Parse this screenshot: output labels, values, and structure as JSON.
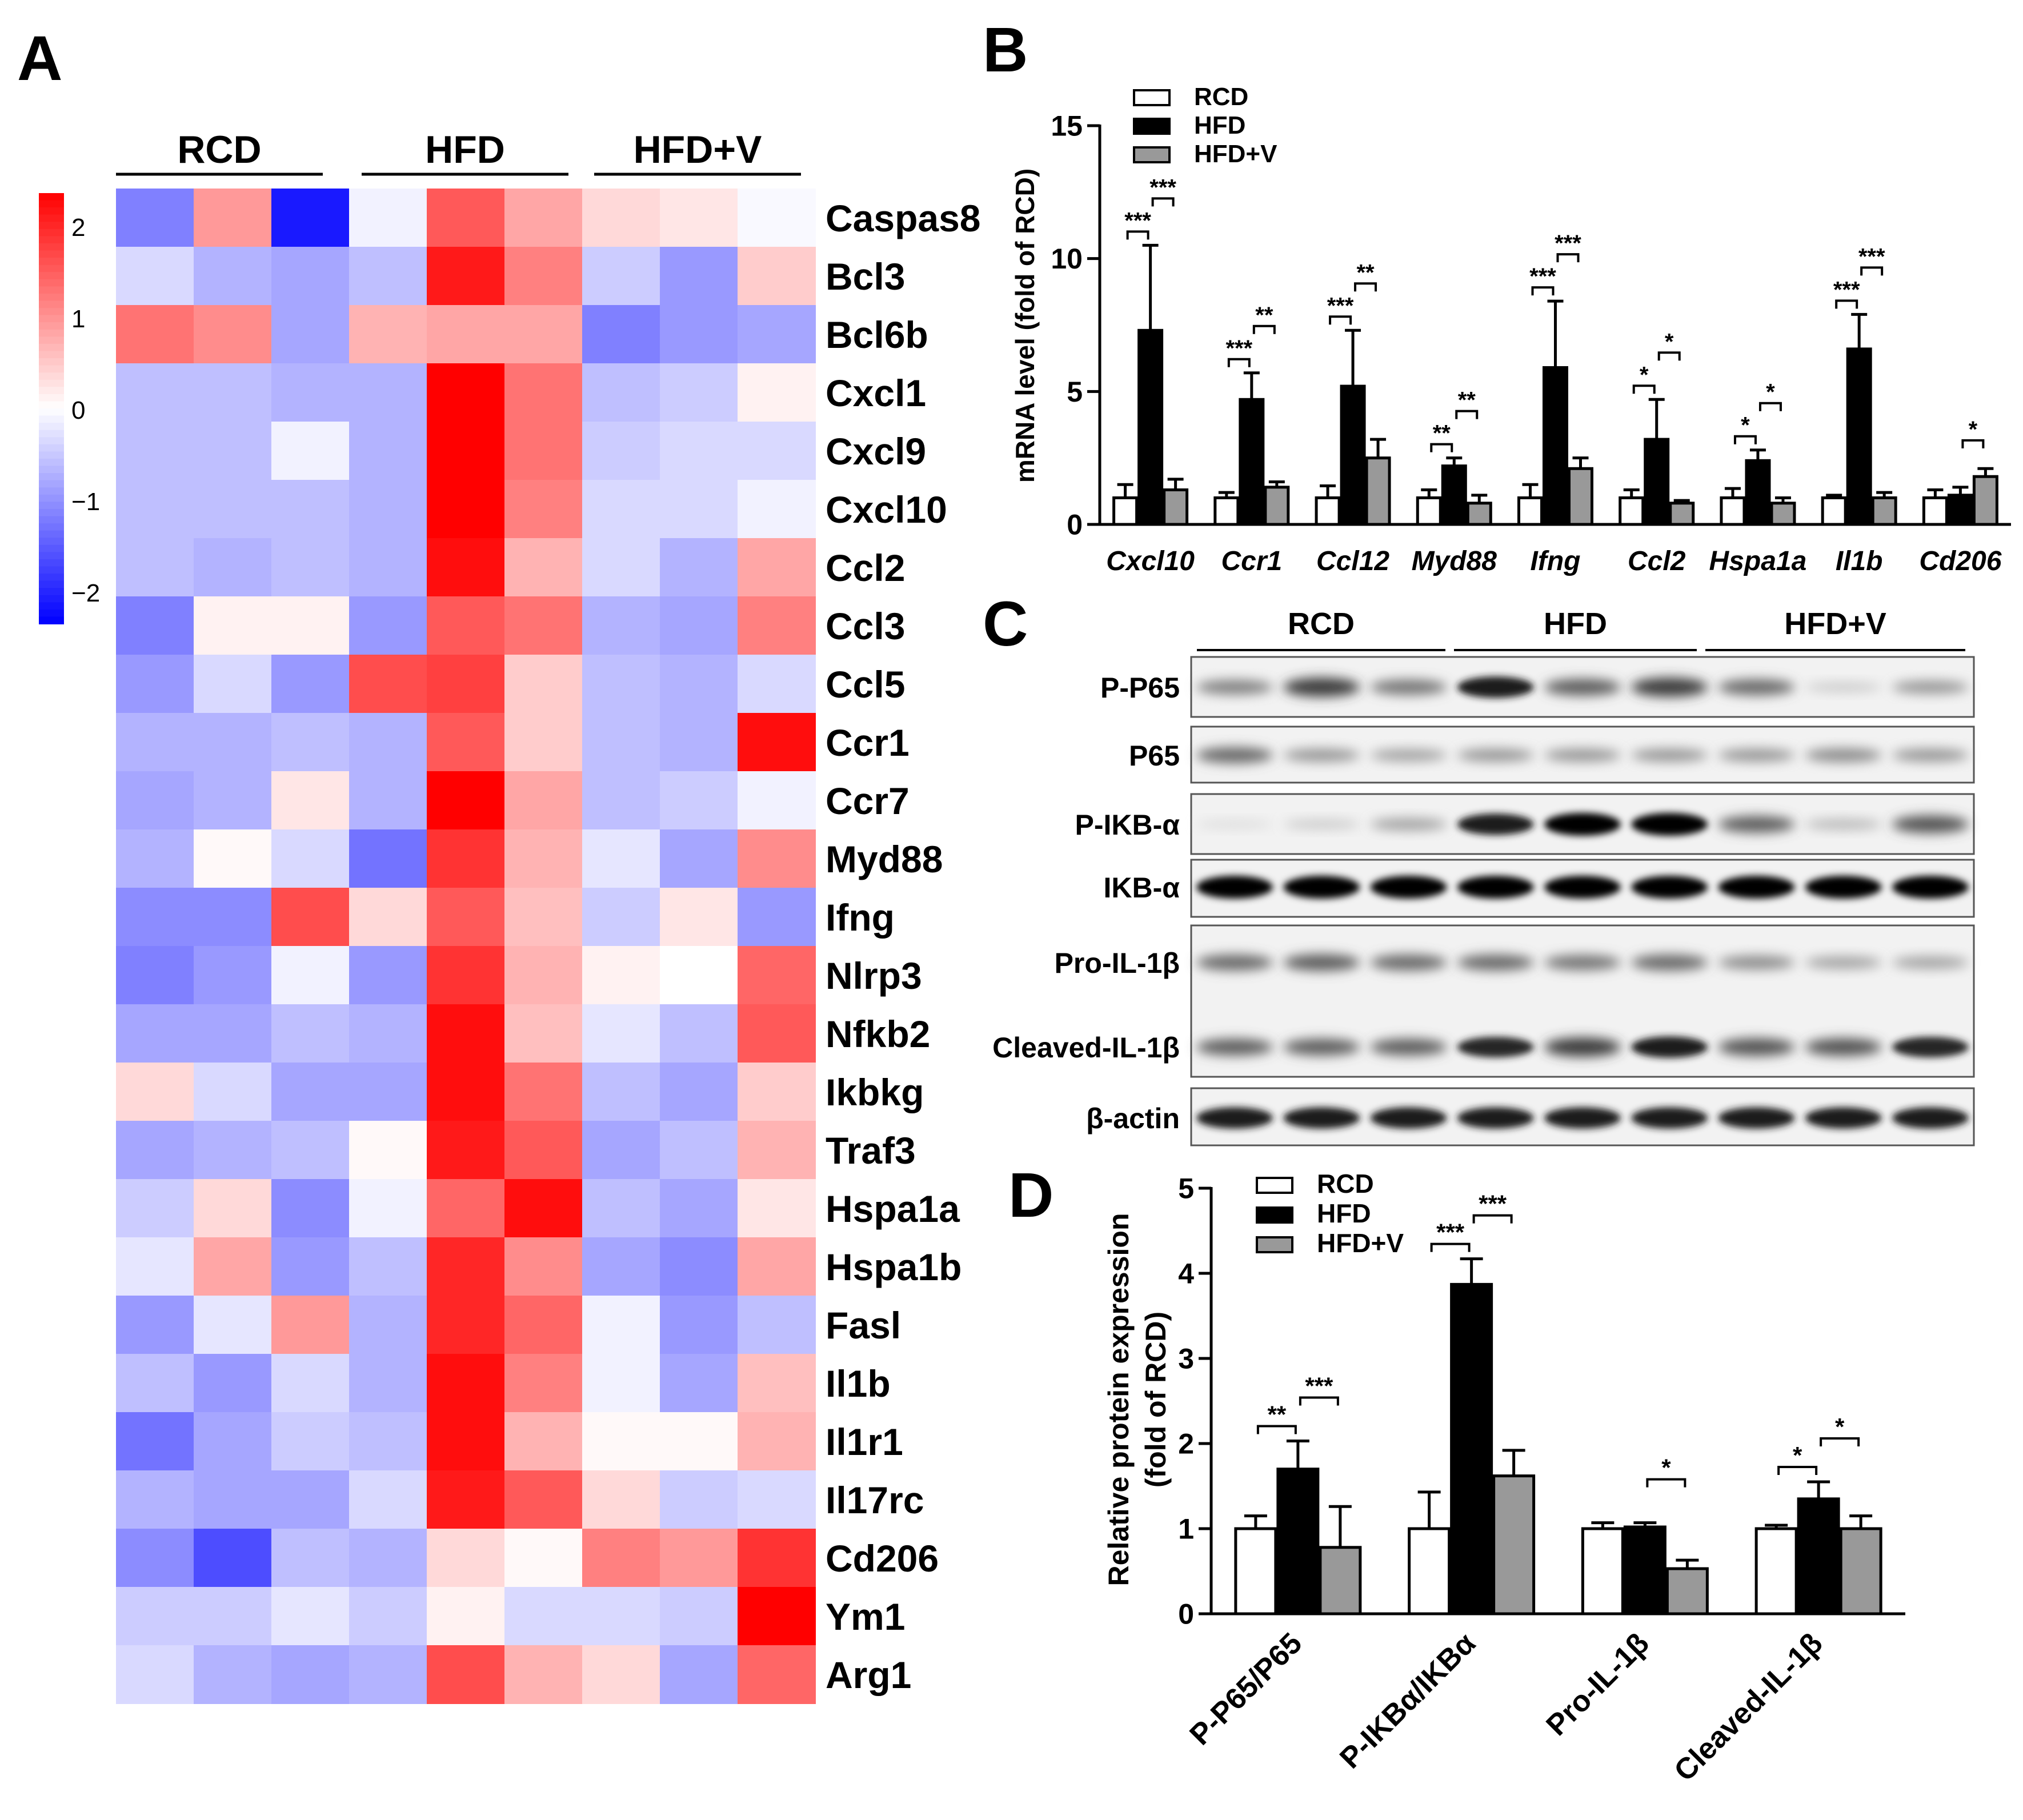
{
  "panels": {
    "A": "A",
    "B": "B",
    "C": "C",
    "D": "D"
  },
  "colors": {
    "rcd": "#ffffff",
    "hfd": "#000000",
    "hfdv": "#999999"
  },
  "chart_data": [
    {
      "panel": "A",
      "type": "heatmap",
      "groups": [
        "RCD",
        "HFD",
        "HFD+V"
      ],
      "genes": [
        "Caspas8",
        "Bcl3",
        "Bcl6b",
        "Cxcl1",
        "Cxcl9",
        "Cxcl10",
        "Ccl2",
        "Ccl3",
        "Ccl5",
        "Ccr1",
        "Ccr7",
        "Myd88",
        "Ifng",
        "Nlrp3",
        "Nfkb2",
        "Ikbkg",
        "Traf3",
        "Hspa1a",
        "Hspa1b",
        "Fasl",
        "Il1b",
        "Il1r1",
        "Il17rc",
        "Cd206",
        "Ym1",
        "Arg1"
      ],
      "values": [
        [
          -1.0,
          0.8,
          -1.8,
          -0.1,
          1.3,
          0.7,
          0.3,
          0.2,
          -0.05
        ],
        [
          -0.3,
          -0.6,
          -0.7,
          -0.5,
          1.8,
          1.0,
          -0.4,
          -0.8,
          0.4
        ],
        [
          1.1,
          0.9,
          -0.7,
          0.6,
          0.7,
          0.7,
          -1.0,
          -0.8,
          -0.7
        ],
        [
          -0.5,
          -0.5,
          -0.6,
          -0.6,
          2.0,
          1.1,
          -0.5,
          -0.4,
          0.1
        ],
        [
          -0.5,
          -0.5,
          -0.1,
          -0.6,
          2.0,
          1.1,
          -0.4,
          -0.3,
          -0.3
        ],
        [
          -0.5,
          -0.5,
          -0.5,
          -0.6,
          2.0,
          1.0,
          -0.3,
          -0.3,
          -0.1
        ],
        [
          -0.5,
          -0.6,
          -0.5,
          -0.6,
          1.9,
          0.6,
          -0.3,
          -0.6,
          0.7
        ],
        [
          -1.0,
          0.1,
          0.1,
          -0.8,
          1.3,
          1.1,
          -0.6,
          -0.7,
          1.0
        ],
        [
          -0.8,
          -0.3,
          -0.8,
          1.4,
          1.5,
          0.4,
          -0.5,
          -0.6,
          -0.3
        ],
        [
          -0.6,
          -0.6,
          -0.5,
          -0.6,
          1.3,
          0.4,
          -0.5,
          -0.6,
          1.9
        ],
        [
          -0.7,
          -0.6,
          0.2,
          -0.6,
          2.1,
          0.7,
          -0.5,
          -0.4,
          -0.1
        ],
        [
          -0.6,
          0.05,
          -0.3,
          -1.1,
          1.6,
          0.6,
          -0.2,
          -0.7,
          0.9
        ],
        [
          -0.9,
          -0.9,
          1.4,
          0.3,
          1.3,
          0.5,
          -0.4,
          0.2,
          -0.8
        ],
        [
          -1.0,
          -0.8,
          -0.1,
          -0.8,
          1.6,
          0.6,
          0.1,
          0.0,
          1.2
        ],
        [
          -0.7,
          -0.7,
          -0.5,
          -0.6,
          1.9,
          0.5,
          -0.2,
          -0.5,
          1.3
        ],
        [
          0.3,
          -0.3,
          -0.7,
          -0.7,
          1.9,
          1.1,
          -0.5,
          -0.7,
          0.4
        ],
        [
          -0.7,
          -0.6,
          -0.5,
          0.05,
          1.8,
          1.3,
          -0.7,
          -0.5,
          0.6
        ],
        [
          -0.4,
          0.3,
          -0.9,
          -0.1,
          1.2,
          1.9,
          -0.5,
          -0.7,
          0.2
        ],
        [
          -0.2,
          0.7,
          -0.8,
          -0.5,
          1.7,
          0.9,
          -0.7,
          -0.9,
          0.7
        ],
        [
          -0.8,
          -0.2,
          0.8,
          -0.6,
          1.7,
          1.2,
          -0.1,
          -0.8,
          -0.5
        ],
        [
          -0.5,
          -0.8,
          -0.3,
          -0.6,
          1.9,
          1.0,
          -0.1,
          -0.7,
          0.5
        ],
        [
          -1.1,
          -0.7,
          -0.4,
          -0.5,
          1.9,
          0.6,
          0.05,
          0.05,
          0.6
        ],
        [
          -0.6,
          -0.7,
          -0.7,
          -0.3,
          1.8,
          1.3,
          0.3,
          -0.4,
          -0.3
        ],
        [
          -0.9,
          -1.4,
          -0.5,
          -0.6,
          0.3,
          0.05,
          1.0,
          0.8,
          1.6
        ],
        [
          -0.4,
          -0.4,
          -0.2,
          -0.4,
          0.1,
          -0.3,
          -0.3,
          -0.4,
          2.3
        ],
        [
          -0.3,
          -0.6,
          -0.7,
          -0.6,
          1.4,
          0.6,
          0.3,
          -0.7,
          1.2
        ]
      ],
      "color_range": [
        -2,
        2
      ],
      "colorbar_ticks": [
        "2",
        "1",
        "0",
        "−1",
        "−2"
      ]
    },
    {
      "panel": "B",
      "type": "bar",
      "ylabel": "mRNA level (fold of RCD)",
      "ylim": [
        0,
        15
      ],
      "yticks": [
        "0",
        "5",
        "10",
        "15"
      ],
      "categories": [
        "Cxcl10",
        "Ccr1",
        "Ccl12",
        "Myd88",
        "Ifng",
        "Ccl2",
        "Hspa1a",
        "Il1b",
        "Cd206"
      ],
      "series": [
        {
          "name": "RCD",
          "values": [
            1.0,
            1.0,
            1.0,
            1.0,
            1.0,
            1.0,
            1.0,
            1.0,
            1.0
          ],
          "err": [
            0.5,
            0.2,
            0.45,
            0.3,
            0.5,
            0.3,
            0.35,
            0.1,
            0.3
          ]
        },
        {
          "name": "HFD",
          "values": [
            7.3,
            4.7,
            5.2,
            2.2,
            5.9,
            3.2,
            2.4,
            6.6,
            1.1
          ],
          "err": [
            3.2,
            1.0,
            2.1,
            0.3,
            2.5,
            1.5,
            0.4,
            1.3,
            0.3
          ]
        },
        {
          "name": "HFD+V",
          "values": [
            1.3,
            1.4,
            2.5,
            0.8,
            2.1,
            0.8,
            0.8,
            1.0,
            1.8
          ],
          "err": [
            0.4,
            0.2,
            0.7,
            0.3,
            0.4,
            0.1,
            0.2,
            0.2,
            0.3
          ]
        }
      ],
      "significance": [
        [
          "***",
          "***"
        ],
        [
          "***",
          "**"
        ],
        [
          "***",
          "**"
        ],
        [
          "**",
          "**"
        ],
        [
          "***",
          "***"
        ],
        [
          "*",
          "*"
        ],
        [
          "*",
          "*"
        ],
        [
          "***",
          "***"
        ],
        [
          "",
          "*"
        ]
      ]
    },
    {
      "panel": "D",
      "type": "bar",
      "ylabel_line1": "Relative protein expression",
      "ylabel_line2": "(fold of RCD)",
      "ylim": [
        0,
        5
      ],
      "yticks": [
        "0",
        "1",
        "2",
        "3",
        "4",
        "5"
      ],
      "categories": [
        "P-P65/P65",
        "P-IKBα/IKBα",
        "Pro-IL-1β",
        "Cleaved-IL-1β"
      ],
      "series": [
        {
          "name": "RCD",
          "values": [
            1.0,
            1.0,
            1.0,
            1.0
          ],
          "err": [
            0.15,
            0.43,
            0.07,
            0.04
          ]
        },
        {
          "name": "HFD",
          "values": [
            1.7,
            3.87,
            1.02,
            1.35
          ],
          "err": [
            0.33,
            0.3,
            0.05,
            0.2
          ]
        },
        {
          "name": "HFD+V",
          "values": [
            0.78,
            1.62,
            0.53,
            1.0
          ],
          "err": [
            0.48,
            0.3,
            0.1,
            0.15
          ]
        }
      ],
      "significance": [
        [
          "**",
          "***"
        ],
        [
          "***",
          "***"
        ],
        [
          "",
          "*"
        ],
        [
          "*",
          "*"
        ]
      ]
    }
  ],
  "western_blot": {
    "groups": [
      "RCD",
      "HFD",
      "HFD+V"
    ],
    "rows": [
      {
        "label": "P-P65",
        "intensity": [
          0.45,
          0.75,
          0.5,
          0.9,
          0.6,
          0.75,
          0.55,
          0.12,
          0.35
        ]
      },
      {
        "label": "P65",
        "intensity": [
          0.55,
          0.35,
          0.3,
          0.35,
          0.35,
          0.35,
          0.35,
          0.4,
          0.35
        ]
      },
      {
        "label": "P-IKB-α",
        "intensity": [
          0.04,
          0.12,
          0.3,
          0.9,
          1.0,
          1.0,
          0.6,
          0.2,
          0.65
        ]
      },
      {
        "label": "IKB-α",
        "intensity": [
          1.0,
          1.0,
          1.0,
          1.0,
          1.0,
          1.0,
          1.0,
          1.0,
          1.0
        ]
      },
      {
        "label": "Pro-IL-1β",
        "intensity": [
          0.55,
          0.6,
          0.55,
          0.55,
          0.5,
          0.55,
          0.4,
          0.3,
          0.3
        ]
      },
      {
        "label": "Cleaved-IL-1β",
        "intensity": [
          0.6,
          0.6,
          0.6,
          0.85,
          0.75,
          0.9,
          0.65,
          0.65,
          0.85
        ]
      },
      {
        "label": "β-actin",
        "intensity": [
          0.9,
          0.9,
          0.9,
          0.9,
          0.9,
          0.9,
          0.9,
          0.9,
          0.9
        ]
      }
    ]
  }
}
